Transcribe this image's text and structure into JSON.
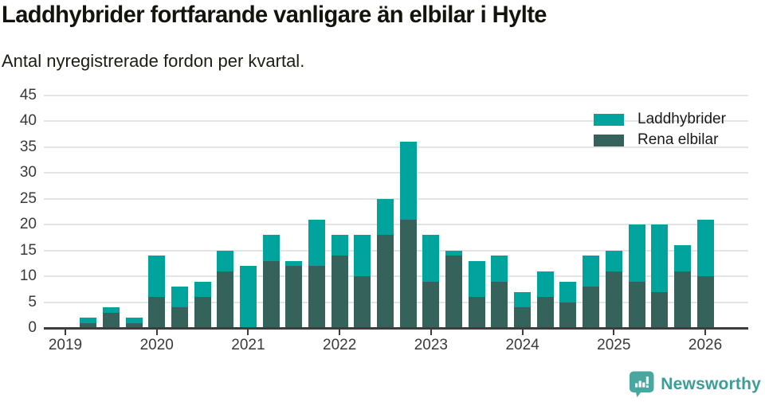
{
  "header": {
    "title": "Laddhybrider fortfarande vanligare än elbilar i Hylte",
    "subtitle": "Antal nyregistrerade fordon per kvartal."
  },
  "legend": {
    "items": [
      {
        "label": "Laddhybrider",
        "color": "#00a49c"
      },
      {
        "label": "Rena elbilar",
        "color": "#35625b"
      }
    ]
  },
  "footer": {
    "brand": "Newsworthy",
    "brand_color": "#3a9e98",
    "logo_color": "#4aa7a0"
  },
  "chart_data": {
    "type": "bar",
    "stacked": true,
    "title": "Laddhybrider fortfarande vanligare än elbilar i Hylte",
    "subtitle": "Antal nyregistrerade fordon per kvartal.",
    "xlabel": "",
    "ylabel": "",
    "categories": [
      "2019 Q1",
      "2019 Q2",
      "2019 Q3",
      "2019 Q4",
      "2020 Q1",
      "2020 Q2",
      "2020 Q3",
      "2020 Q4",
      "2021 Q1",
      "2021 Q2",
      "2021 Q3",
      "2021 Q4",
      "2022 Q1",
      "2022 Q2",
      "2022 Q3",
      "2022 Q4",
      "2023 Q1",
      "2023 Q2",
      "2023 Q3",
      "2023 Q4",
      "2024 Q1",
      "2024 Q2",
      "2024 Q3",
      "2024 Q4",
      "2025 Q1",
      "2025 Q2",
      "2025 Q3",
      "2025 Q4",
      "2026 Q1"
    ],
    "series": [
      {
        "name": "Rena elbilar",
        "color": "#35625b",
        "values": [
          0,
          1,
          3,
          1,
          6,
          4,
          6,
          11,
          0,
          13,
          12,
          12,
          14,
          10,
          18,
          21,
          9,
          14,
          6,
          9,
          4,
          6,
          5,
          8,
          11,
          9,
          7,
          11,
          10
        ]
      },
      {
        "name": "Laddhybrider",
        "color": "#00a49c",
        "values": [
          0,
          1,
          1,
          1,
          8,
          4,
          3,
          4,
          12,
          5,
          1,
          9,
          4,
          8,
          7,
          15,
          9,
          1,
          7,
          5,
          3,
          5,
          4,
          6,
          4,
          11,
          13,
          5,
          11
        ]
      }
    ],
    "totals": [
      0,
      2,
      4,
      2,
      14,
      8,
      9,
      15,
      12,
      18,
      13,
      21,
      18,
      18,
      25,
      36,
      18,
      15,
      13,
      14,
      7,
      11,
      9,
      14,
      15,
      20,
      20,
      16,
      21
    ],
    "x_year_ticks": [
      "2019",
      "2020",
      "2021",
      "2022",
      "2023",
      "2024",
      "2025",
      "2026"
    ],
    "yticks": [
      0,
      5,
      10,
      15,
      20,
      25,
      30,
      35,
      40,
      45
    ],
    "ylim": [
      0,
      45
    ],
    "grid": "horizontal",
    "legend_position": "top-right"
  }
}
